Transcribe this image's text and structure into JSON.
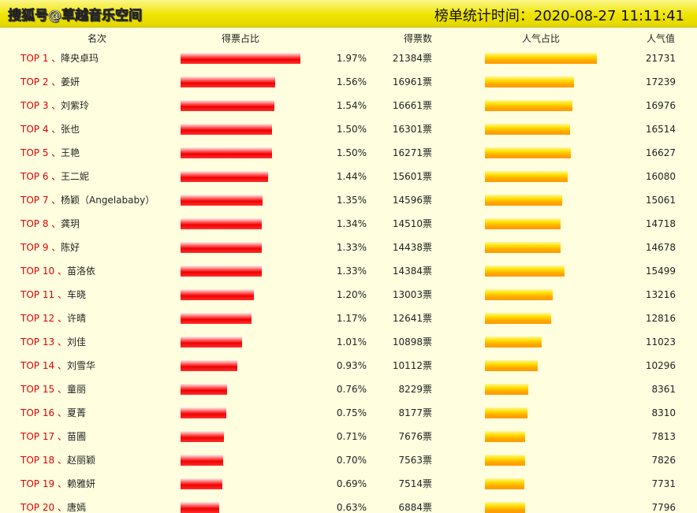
{
  "header": {
    "source": "搜狐号@草越音乐空间",
    "timestamp": "榜单统计时间：2020-08-27 11:11:41"
  },
  "table": {
    "columns": [
      "名次",
      "得票占比",
      "得票数",
      "人气占比",
      "人气值"
    ],
    "rows": [
      {
        "rank": "TOP 1 、",
        "name": "降央卓玛",
        "share": {
          "value": 1.97,
          "label": "1.97%"
        },
        "votes": "21384票",
        "popularity": 21731
      },
      {
        "rank": "TOP 2 、",
        "name": "姜妍",
        "share": {
          "value": 1.56,
          "label": "1.56%"
        },
        "votes": "16961票",
        "popularity": 17239
      },
      {
        "rank": "TOP 3 、",
        "name": "刘紫玲",
        "share": {
          "value": 1.54,
          "label": "1.54%"
        },
        "votes": "16661票",
        "popularity": 16976
      },
      {
        "rank": "TOP 4 、",
        "name": "张也",
        "share": {
          "value": 1.5,
          "label": "1.50%"
        },
        "votes": "16301票",
        "popularity": 16514
      },
      {
        "rank": "TOP 5 、",
        "name": "王艳",
        "share": {
          "value": 1.5,
          "label": "1.50%"
        },
        "votes": "16271票",
        "popularity": 16627
      },
      {
        "rank": "TOP 6 、",
        "name": "王二妮",
        "share": {
          "value": 1.44,
          "label": "1.44%"
        },
        "votes": "15601票",
        "popularity": 16080
      },
      {
        "rank": "TOP 7 、",
        "name": "杨颖（Angelababy）",
        "share": {
          "value": 1.35,
          "label": "1.35%"
        },
        "votes": "14596票",
        "popularity": 15061
      },
      {
        "rank": "TOP 8 、",
        "name": "龚玥",
        "share": {
          "value": 1.34,
          "label": "1.34%"
        },
        "votes": "14510票",
        "popularity": 14718
      },
      {
        "rank": "TOP 9 、",
        "name": "陈好",
        "share": {
          "value": 1.33,
          "label": "1.33%"
        },
        "votes": "14438票",
        "popularity": 14678
      },
      {
        "rank": "TOP 10 、",
        "name": "苗洛依",
        "share": {
          "value": 1.33,
          "label": "1.33%"
        },
        "votes": "14384票",
        "popularity": 15499
      },
      {
        "rank": "TOP 11 、",
        "name": "车晓",
        "share": {
          "value": 1.2,
          "label": "1.20%"
        },
        "votes": "13003票",
        "popularity": 13216
      },
      {
        "rank": "TOP 12 、",
        "name": "许晴",
        "share": {
          "value": 1.17,
          "label": "1.17%"
        },
        "votes": "12641票",
        "popularity": 12816
      },
      {
        "rank": "TOP 13 、",
        "name": "刘佳",
        "share": {
          "value": 1.01,
          "label": "1.01%"
        },
        "votes": "10898票",
        "popularity": 11023
      },
      {
        "rank": "TOP 14 、",
        "name": "刘雪华",
        "share": {
          "value": 0.93,
          "label": "0.93%"
        },
        "votes": "10112票",
        "popularity": 10296
      },
      {
        "rank": "TOP 15 、",
        "name": "童丽",
        "share": {
          "value": 0.76,
          "label": "0.76%"
        },
        "votes": "8229票",
        "popularity": 8361
      },
      {
        "rank": "TOP 16 、",
        "name": "夏菁",
        "share": {
          "value": 0.75,
          "label": "0.75%"
        },
        "votes": "8177票",
        "popularity": 8310
      },
      {
        "rank": "TOP 17 、",
        "name": "苗圃",
        "share": {
          "value": 0.71,
          "label": "0.71%"
        },
        "votes": "7676票",
        "popularity": 7813
      },
      {
        "rank": "TOP 18 、",
        "name": "赵丽颖",
        "share": {
          "value": 0.7,
          "label": "0.70%"
        },
        "votes": "7563票",
        "popularity": 7826
      },
      {
        "rank": "TOP 19 、",
        "name": "赖雅妍",
        "share": {
          "value": 0.69,
          "label": "0.69%"
        },
        "votes": "7514票",
        "popularity": 7731
      },
      {
        "rank": "TOP 20 、",
        "name": "唐嫣",
        "share": {
          "value": 0.63,
          "label": "0.63%"
        },
        "votes": "6884票",
        "popularity": 7796
      }
    ]
  }
}
